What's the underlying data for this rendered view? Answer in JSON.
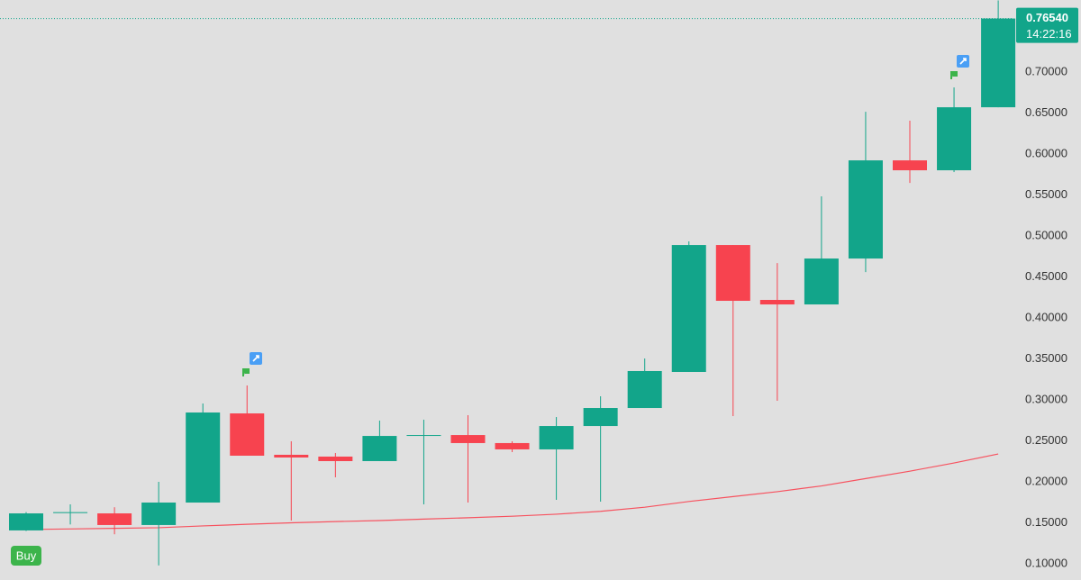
{
  "chart_data": {
    "type": "candlestick",
    "up_color": "#12a58a",
    "down_color": "#f7434f",
    "open": [
      0.1407,
      0.162,
      0.1615,
      0.1473,
      0.1747,
      0.2835,
      0.233,
      0.2308,
      0.2253,
      0.256,
      0.2571,
      0.2473,
      0.2396,
      0.2681,
      0.2901,
      0.3341,
      0.489,
      0.422,
      0.4165,
      0.4725,
      0.5923,
      0.5802,
      0.6571
    ],
    "high": [
      0.163,
      0.1725,
      0.169,
      0.2,
      0.2956,
      0.3176,
      0.2495,
      0.2352,
      0.2747,
      0.2758,
      0.2813,
      0.2495,
      0.2791,
      0.3044,
      0.3505,
      0.4934,
      0.489,
      0.467,
      0.5484,
      0.6516,
      0.6407,
      0.6813,
      0.7875
    ],
    "low": [
      0.14,
      0.148,
      0.136,
      0.098,
      0.1747,
      0.2319,
      0.1527,
      0.2055,
      0.2253,
      0.1725,
      0.1747,
      0.2363,
      0.178,
      0.1758,
      0.2901,
      0.3341,
      0.2802,
      0.2989,
      0.4165,
      0.456,
      0.5648,
      0.578,
      0.6571
    ],
    "close": [
      0.1615,
      0.163,
      0.1473,
      0.1747,
      0.2846,
      0.2319,
      0.2297,
      0.2253,
      0.256,
      0.2571,
      0.2473,
      0.2396,
      0.2681,
      0.2901,
      0.3352,
      0.489,
      0.4209,
      0.4165,
      0.4725,
      0.5923,
      0.5802,
      0.6571,
      0.7654
    ],
    "moving_average": {
      "color": "#f7525f",
      "values": [
        0.1418,
        0.1425,
        0.1433,
        0.144,
        0.1462,
        0.1482,
        0.15,
        0.1515,
        0.1527,
        0.1545,
        0.1562,
        0.158,
        0.1605,
        0.164,
        0.169,
        0.176,
        0.182,
        0.188,
        0.195,
        0.204,
        0.213,
        0.223,
        0.234
      ]
    },
    "ylim": [
      0.0802,
      0.788
    ],
    "yticks": [
      {
        "value": 0.1,
        "label": "0.10000"
      },
      {
        "value": 0.15,
        "label": "0.15000"
      },
      {
        "value": 0.2,
        "label": "0.20000"
      },
      {
        "value": 0.25,
        "label": "0.25000"
      },
      {
        "value": 0.3,
        "label": "0.30000"
      },
      {
        "value": 0.35,
        "label": "0.35000"
      },
      {
        "value": 0.4,
        "label": "0.40000"
      },
      {
        "value": 0.45,
        "label": "0.45000"
      },
      {
        "value": 0.5,
        "label": "0.50000"
      },
      {
        "value": 0.55,
        "label": "0.55000"
      },
      {
        "value": 0.6,
        "label": "0.60000"
      },
      {
        "value": 0.65,
        "label": "0.65000"
      },
      {
        "value": 0.7,
        "label": "0.70000"
      }
    ],
    "current_price": {
      "value": 0.7654,
      "label": "0.76540"
    },
    "countdown": "14:22:16",
    "signal": "Buy"
  }
}
